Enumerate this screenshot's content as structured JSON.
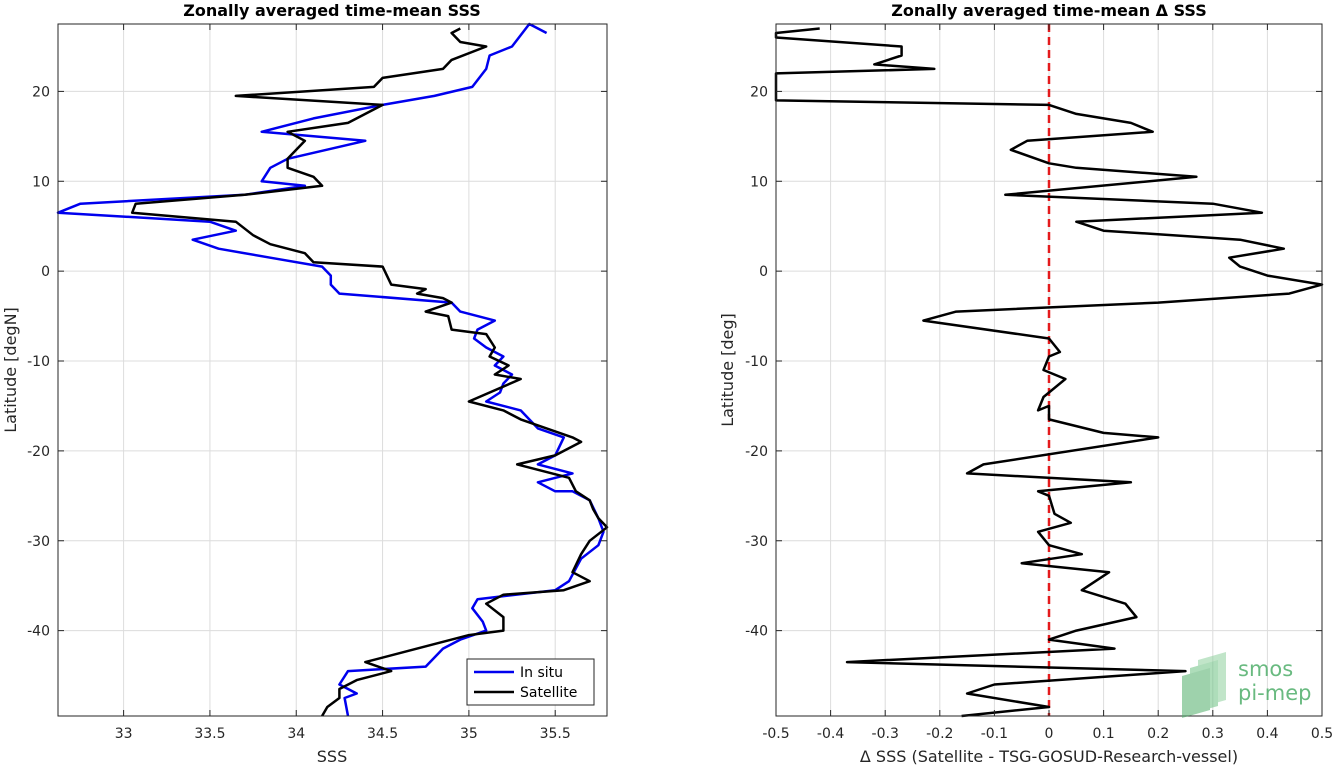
{
  "chart_data": [
    {
      "type": "line",
      "title": "Zonally averaged time-mean SSS",
      "xlabel": "SSS",
      "ylabel": "Latitude [degN]",
      "xlim": [
        32.62,
        35.8
      ],
      "ylim": [
        -49.5,
        27.5
      ],
      "xticks": [
        33,
        33.5,
        34,
        34.5,
        35,
        35.5
      ],
      "yticks": [
        -40,
        -30,
        -20,
        -10,
        0,
        10,
        20
      ],
      "grid": true,
      "legend_position": "bottom-right",
      "series": [
        {
          "name": "In situ",
          "color": "#0000ee",
          "points": [
            [
              35.45,
              26.5
            ],
            [
              35.35,
              27.5
            ],
            [
              35.25,
              25.0
            ],
            [
              35.12,
              24.0
            ],
            [
              35.1,
              22.5
            ],
            [
              35.02,
              20.5
            ],
            [
              34.8,
              19.5
            ],
            [
              34.5,
              18.5
            ],
            [
              34.1,
              17.0
            ],
            [
              33.8,
              15.5
            ],
            [
              34.4,
              14.5
            ],
            [
              33.95,
              12.5
            ],
            [
              33.85,
              11.5
            ],
            [
              33.8,
              10.0
            ],
            [
              34.05,
              9.5
            ],
            [
              33.7,
              8.5
            ],
            [
              32.75,
              7.5
            ],
            [
              32.62,
              6.5
            ],
            [
              33.5,
              5.5
            ],
            [
              33.65,
              4.5
            ],
            [
              33.4,
              3.5
            ],
            [
              33.55,
              2.5
            ],
            [
              33.85,
              1.5
            ],
            [
              34.15,
              0.5
            ],
            [
              34.2,
              -0.5
            ],
            [
              34.2,
              -1.5
            ],
            [
              34.25,
              -2.5
            ],
            [
              34.9,
              -3.5
            ],
            [
              34.95,
              -4.5
            ],
            [
              35.15,
              -5.5
            ],
            [
              35.05,
              -6.5
            ],
            [
              35.03,
              -7.5
            ],
            [
              35.1,
              -8.5
            ],
            [
              35.2,
              -9.5
            ],
            [
              35.15,
              -10.5
            ],
            [
              35.25,
              -11.5
            ],
            [
              35.2,
              -12.5
            ],
            [
              35.18,
              -13.5
            ],
            [
              35.1,
              -14.5
            ],
            [
              35.3,
              -15.5
            ],
            [
              35.4,
              -17.5
            ],
            [
              35.55,
              -18.5
            ],
            [
              35.5,
              -20.5
            ],
            [
              35.4,
              -21.5
            ],
            [
              35.6,
              -22.5
            ],
            [
              35.4,
              -23.5
            ],
            [
              35.5,
              -24.5
            ],
            [
              35.6,
              -24.5
            ],
            [
              35.7,
              -25.5
            ],
            [
              35.75,
              -27.5
            ],
            [
              35.78,
              -29.0
            ],
            [
              35.75,
              -30.5
            ],
            [
              35.65,
              -32.0
            ],
            [
              35.58,
              -34.5
            ],
            [
              35.5,
              -35.5
            ],
            [
              35.05,
              -36.5
            ],
            [
              35.02,
              -37.5
            ],
            [
              35.08,
              -39.0
            ],
            [
              35.1,
              -40.0
            ],
            [
              34.95,
              -41.0
            ],
            [
              34.85,
              -42.0
            ],
            [
              34.75,
              -44.0
            ],
            [
              34.3,
              -44.5
            ],
            [
              34.25,
              -46.0
            ],
            [
              34.35,
              -47.0
            ],
            [
              34.28,
              -47.5
            ],
            [
              34.3,
              -49.5
            ]
          ]
        },
        {
          "name": "Satellite",
          "color": "#000000",
          "points": [
            [
              34.95,
              27.0
            ],
            [
              34.9,
              26.5
            ],
            [
              34.95,
              25.5
            ],
            [
              35.1,
              25.0
            ],
            [
              34.9,
              23.5
            ],
            [
              34.85,
              22.5
            ],
            [
              34.5,
              21.5
            ],
            [
              34.45,
              20.5
            ],
            [
              33.65,
              19.5
            ],
            [
              34.5,
              18.5
            ],
            [
              34.3,
              16.5
            ],
            [
              33.95,
              15.5
            ],
            [
              34.05,
              14.5
            ],
            [
              33.95,
              12.5
            ],
            [
              33.95,
              11.5
            ],
            [
              34.1,
              10.5
            ],
            [
              34.15,
              9.5
            ],
            [
              33.7,
              8.5
            ],
            [
              33.07,
              7.5
            ],
            [
              33.05,
              6.5
            ],
            [
              33.65,
              5.5
            ],
            [
              33.75,
              4.0
            ],
            [
              33.85,
              3.0
            ],
            [
              34.05,
              2.0
            ],
            [
              34.1,
              1.0
            ],
            [
              34.5,
              0.5
            ],
            [
              34.55,
              -1.5
            ],
            [
              34.75,
              -2.0
            ],
            [
              34.7,
              -2.5
            ],
            [
              34.85,
              -3.0
            ],
            [
              34.9,
              -3.5
            ],
            [
              34.75,
              -4.5
            ],
            [
              34.88,
              -5.0
            ],
            [
              34.9,
              -6.5
            ],
            [
              35.1,
              -7.0
            ],
            [
              35.15,
              -8.5
            ],
            [
              35.12,
              -9.5
            ],
            [
              35.23,
              -10.5
            ],
            [
              35.15,
              -11.5
            ],
            [
              35.3,
              -12.0
            ],
            [
              35.0,
              -14.5
            ],
            [
              35.2,
              -15.5
            ],
            [
              35.3,
              -16.5
            ],
            [
              35.6,
              -18.5
            ],
            [
              35.65,
              -19.0
            ],
            [
              35.5,
              -20.5
            ],
            [
              35.28,
              -21.5
            ],
            [
              35.58,
              -23.0
            ],
            [
              35.62,
              -24.5
            ],
            [
              35.7,
              -25.5
            ],
            [
              35.72,
              -26.5
            ],
            [
              35.75,
              -27.5
            ],
            [
              35.8,
              -28.5
            ],
            [
              35.7,
              -30.0
            ],
            [
              35.65,
              -31.5
            ],
            [
              35.6,
              -33.5
            ],
            [
              35.7,
              -34.5
            ],
            [
              35.55,
              -35.5
            ],
            [
              35.2,
              -36.0
            ],
            [
              35.1,
              -37.0
            ],
            [
              35.2,
              -38.5
            ],
            [
              35.2,
              -40.0
            ],
            [
              35.0,
              -40.5
            ],
            [
              34.7,
              -42.0
            ],
            [
              34.4,
              -43.5
            ],
            [
              34.55,
              -44.5
            ],
            [
              34.35,
              -45.5
            ],
            [
              34.25,
              -46.5
            ],
            [
              34.25,
              -47.5
            ],
            [
              34.18,
              -48.5
            ],
            [
              34.15,
              -49.5
            ]
          ]
        }
      ]
    },
    {
      "type": "line",
      "title": "Zonally averaged time-mean Δ SSS",
      "xlabel": "Δ SSS (Satellite - TSG-GOSUD-Research-vessel)",
      "ylabel": "Latitude [deg]",
      "xlim": [
        -0.5,
        0.5
      ],
      "ylim": [
        -49.5,
        27.5
      ],
      "xticks": [
        -0.5,
        -0.4,
        -0.3,
        -0.2,
        -0.1,
        0,
        0.1,
        0.2,
        0.3,
        0.4,
        0.5
      ],
      "yticks": [
        -40,
        -30,
        -20,
        -10,
        0,
        10,
        20
      ],
      "grid": true,
      "reference_line": {
        "x": 0,
        "color": "#e41a1c",
        "style": "dashed"
      },
      "series": [
        {
          "color": "#000000",
          "points": [
            [
              -0.42,
              27.0
            ],
            [
              -0.5,
              26.5
            ],
            [
              -0.5,
              26.0
            ],
            [
              -0.27,
              25.0
            ],
            [
              -0.27,
              24.0
            ],
            [
              -0.32,
              23.0
            ],
            [
              -0.21,
              22.5
            ],
            [
              -0.5,
              22.0
            ],
            [
              -0.5,
              19.0
            ],
            [
              0.0,
              18.5
            ],
            [
              0.05,
              17.5
            ],
            [
              0.15,
              16.5
            ],
            [
              0.19,
              15.5
            ],
            [
              -0.04,
              14.5
            ],
            [
              -0.07,
              13.5
            ],
            [
              0.0,
              12.0
            ],
            [
              0.05,
              11.5
            ],
            [
              0.27,
              10.5
            ],
            [
              -0.08,
              8.5
            ],
            [
              0.3,
              7.5
            ],
            [
              0.39,
              6.5
            ],
            [
              0.05,
              5.5
            ],
            [
              0.1,
              4.5
            ],
            [
              0.35,
              3.5
            ],
            [
              0.43,
              2.5
            ],
            [
              0.33,
              1.5
            ],
            [
              0.35,
              0.5
            ],
            [
              0.4,
              -0.5
            ],
            [
              0.5,
              -1.5
            ],
            [
              0.44,
              -2.5
            ],
            [
              0.2,
              -3.5
            ],
            [
              -0.17,
              -4.5
            ],
            [
              -0.23,
              -5.5
            ],
            [
              0.0,
              -7.5
            ],
            [
              0.02,
              -9.0
            ],
            [
              0.0,
              -9.5
            ],
            [
              -0.01,
              -11.0
            ],
            [
              0.03,
              -12.0
            ],
            [
              -0.01,
              -14.0
            ],
            [
              -0.02,
              -15.5
            ],
            [
              0.0,
              -15.0
            ],
            [
              0.0,
              -16.5
            ],
            [
              0.1,
              -18.0
            ],
            [
              0.2,
              -18.5
            ],
            [
              -0.12,
              -21.5
            ],
            [
              -0.15,
              -22.5
            ],
            [
              0.15,
              -23.5
            ],
            [
              -0.02,
              -24.5
            ],
            [
              0.0,
              -25.0
            ],
            [
              0.01,
              -27.0
            ],
            [
              0.04,
              -28.0
            ],
            [
              -0.02,
              -29.0
            ],
            [
              0.0,
              -30.5
            ],
            [
              0.06,
              -31.5
            ],
            [
              -0.05,
              -32.5
            ],
            [
              0.11,
              -33.5
            ],
            [
              0.06,
              -35.5
            ],
            [
              0.14,
              -37.0
            ],
            [
              0.16,
              -38.5
            ],
            [
              0.05,
              -40.0
            ],
            [
              0.0,
              -41.0
            ],
            [
              0.12,
              -42.0
            ],
            [
              -0.37,
              -43.5
            ],
            [
              0.25,
              -44.5
            ],
            [
              -0.1,
              -46.0
            ],
            [
              -0.15,
              -47.0
            ],
            [
              0.0,
              -48.5
            ],
            [
              -0.16,
              -49.5
            ]
          ]
        }
      ]
    }
  ],
  "logo": {
    "line1": "smos",
    "line2": "pi-mep",
    "color": "#4fae6a"
  }
}
